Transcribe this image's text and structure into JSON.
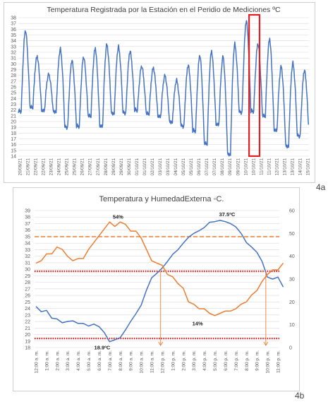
{
  "chart_data": [
    {
      "type": "line",
      "title": "Temperatura Registrada por la Estación en el Peridio de Mediciones ºC",
      "xlabel": "",
      "ylabel": "",
      "ylim": [
        14,
        38
      ],
      "yticks": [
        "14",
        "15",
        "16",
        "17",
        "18",
        "19",
        "20",
        "21",
        "22",
        "23",
        "24",
        "25",
        "26",
        "27",
        "28",
        "29",
        "30",
        "31",
        "32",
        "33",
        "34",
        "35",
        "36",
        "37",
        "38"
      ],
      "x_dates": [
        "20/09/21",
        "21/09/21",
        "22/09/21",
        "23/09/21",
        "24/09/21",
        "25/09/21",
        "26/09/21",
        "27/09/21",
        "28/09/21",
        "29/09/21",
        "30/09/21",
        "01/10/21",
        "02/10/21",
        "03/10/21",
        "04/10/21",
        "05/10/21",
        "06/10/21",
        "07/10/21",
        "08/10/21",
        "09/10/21",
        "10/10/21",
        "11/10/21",
        "12/10/21",
        "13/10/21",
        "14/10/21",
        "15/10/21"
      ],
      "x_labels": [
        "20/09/21",
        "21/09/21",
        "22/09/21",
        "22/09/21",
        "23/09/21",
        "24/09/21",
        "25/09/21",
        "25/09/21",
        "26/09/21",
        "27/09/21",
        "27/09/21",
        "28/09/21",
        "29/09/21",
        "29/09/21",
        "30/09/21",
        "01/10/21",
        "01/10/21",
        "02/10/21",
        "03/10/21",
        "03/10/21",
        "04/10/21",
        "05/10/21",
        "05/10/21",
        "06/10/21",
        "07/10/21",
        "07/10/21",
        "08/10/21",
        "09/10/21",
        "09/10/21",
        "10/10/21",
        "10/10/21",
        "11/10/21",
        "11/10/21",
        "12/10/21",
        "13/10/21",
        "13/10/21",
        "14/10/21",
        "15/10/21"
      ],
      "daily_series": {
        "name": "",
        "color": "#4472c4",
        "days": [
          "20/09/21",
          "21/09/21",
          "22/09/21",
          "23/09/21",
          "24/09/21",
          "25/09/21",
          "26/09/21",
          "27/09/21",
          "28/09/21",
          "29/09/21",
          "30/09/21",
          "01/10/21",
          "02/10/21",
          "03/10/21",
          "04/10/21",
          "05/10/21",
          "06/10/21",
          "07/10/21",
          "08/10/21",
          "09/10/21",
          "10/10/21",
          "11/10/21",
          "12/10/21",
          "13/10/21",
          "14/10/21"
        ],
        "max": [
          35.8,
          31.3,
          28.2,
          32.6,
          30.6,
          31.2,
          32.7,
          33.4,
          33.0,
          32.2,
          29.6,
          29.3,
          28.0,
          27.2,
          29.8,
          31.5,
          32.2,
          31.3,
          33.5,
          37.5,
          33.5,
          34.3,
          29.6,
          30.2,
          28.9
        ],
        "min": [
          21.8,
          22.5,
          21.9,
          21.7,
          19.0,
          19.2,
          21.0,
          19.2,
          21.4,
          21.5,
          22.0,
          21.4,
          20.9,
          19.9,
          19.2,
          18.4,
          16.2,
          19.5,
          14.3,
          21.6,
          21.8,
          21.0,
          18.5,
          15.7,
          17.5
        ]
      },
      "highlight": {
        "day": "10/10/21",
        "color": "#e02020"
      },
      "grid": true,
      "legend": "none"
    },
    {
      "type": "line",
      "title": "Temperatura y HumedadExterna ◦C.",
      "xlabel": "",
      "ylabel": "",
      "ylim": [
        18,
        39
      ],
      "y2lim": [
        0,
        60
      ],
      "yticks": [
        "18",
        "19",
        "20",
        "21",
        "22",
        "23",
        "24",
        "25",
        "26",
        "27",
        "28",
        "29",
        "30",
        "31",
        "32",
        "33",
        "34",
        "35",
        "36",
        "37",
        "38",
        "39"
      ],
      "y2ticks": [
        "0",
        "10",
        "20",
        "30",
        "40",
        "50",
        "60"
      ],
      "categories": [
        "12:00 a. m.",
        "1:00 a. m.",
        "2:00 a. m.",
        "3:00 a. m.",
        "4:00 a. m.",
        "5:00 a. m.",
        "6:00 a. m.",
        "7:00 a. m.",
        "8:00 a. m.",
        "9:00 a. m.",
        "10:00 a. m.",
        "11:00 a. m.",
        "12:00 p. m.",
        "1:00 p. m.",
        "2:00 p. m.",
        "3:00 p. m.",
        "4:00 p. m.",
        "5:00 p. m.",
        "6:00 p. m.",
        "7:00 p. m.",
        "8:00 p. m.",
        "9:00 p. m.",
        "10:00 p. m.",
        "11:00 p. m."
      ],
      "x": [
        0,
        0.5,
        1,
        1.5,
        2,
        2.5,
        3,
        3.5,
        4,
        4.5,
        5,
        5.5,
        6,
        6.5,
        7,
        7.5,
        8,
        8.5,
        9,
        9.5,
        10,
        10.5,
        11,
        11.5,
        12,
        12.5,
        13,
        13.5,
        14,
        14.5,
        15,
        15.5,
        16,
        16.5,
        17,
        17.5,
        18,
        18.5,
        19,
        19.5,
        20,
        20.5,
        21,
        21.5,
        22,
        22.5,
        23,
        23.5
      ],
      "series": [
        {
          "name": "",
          "axis": "left",
          "color": "#4472c4",
          "values": [
            24.3,
            23.5,
            23.7,
            22.5,
            22.4,
            21.8,
            22.0,
            22.1,
            21.7,
            21.7,
            21.3,
            21.6,
            21.2,
            20.3,
            18.9,
            19.2,
            19.5,
            20.7,
            22.0,
            23.2,
            24.5,
            26.8,
            28.7,
            29.4,
            30.2,
            31.2,
            32.3,
            33.0,
            34.0,
            34.9,
            35.5,
            35.9,
            36.4,
            37.2,
            37.3,
            37.5,
            37.3,
            37.0,
            36.5,
            35.5,
            34.1,
            33.4,
            32.6,
            31.2,
            28.8,
            28.5,
            28.8,
            27.3
          ]
        },
        {
          "name": "",
          "axis": "right",
          "color": "#ed7d31",
          "values": [
            37,
            38,
            41,
            41,
            44,
            43,
            40,
            38,
            39,
            39,
            43,
            46,
            49,
            52,
            55,
            53,
            55,
            54,
            51,
            51,
            48,
            43,
            38,
            37,
            36,
            32,
            31,
            28,
            26,
            20,
            19,
            17,
            17,
            15,
            14,
            15,
            16,
            16,
            17,
            19,
            20,
            23,
            25,
            29,
            32,
            34,
            34,
            37
          ]
        }
      ],
      "reference_lines": [
        {
          "axis": "left",
          "value": 35,
          "color": "#ed7d31",
          "style": "dashed"
        },
        {
          "axis": "left",
          "value": 29.7,
          "color": "#e02020",
          "style": "dotted"
        },
        {
          "axis": "left",
          "value": 19.4,
          "color": "#e02020",
          "style": "dotted"
        }
      ],
      "crossing_markers": [
        {
          "x": 11.85,
          "color": "#ed7d31"
        },
        {
          "x": 21.85,
          "color": "#ed7d31"
        }
      ],
      "annotations": [
        {
          "text": "54%",
          "x": 7.8,
          "value": 54,
          "axis": "right"
        },
        {
          "text": "37.5ºC",
          "x": 17.5,
          "value": 37.5,
          "axis": "left"
        },
        {
          "text": "14%",
          "x": 15.5,
          "value": 14,
          "axis": "right"
        },
        {
          "text": "18.9ºC",
          "x": 6.7,
          "value": 18.9,
          "axis": "left"
        }
      ],
      "grid": true,
      "legend": "none"
    }
  ],
  "panel_labels": {
    "a": "4a",
    "b": "4b"
  }
}
